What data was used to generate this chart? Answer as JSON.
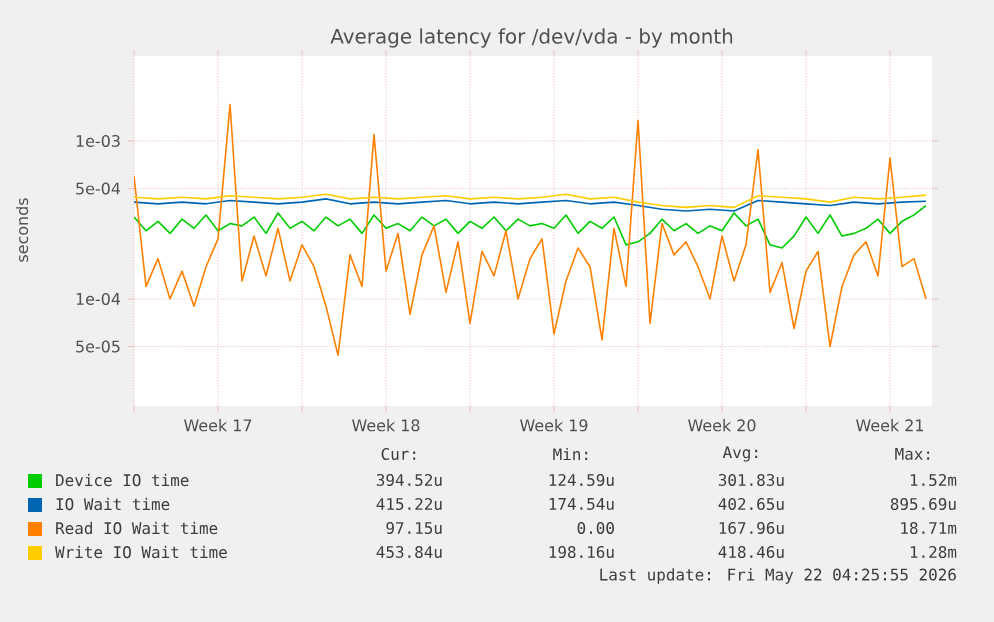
{
  "chart_data": {
    "type": "line",
    "title": "Average latency for /dev/vda - by month",
    "ylabel": "seconds",
    "log": "y",
    "grid": true,
    "legend": "bottom",
    "xlim": [
      "2026-04-20",
      "2026-05-23T06:00"
    ],
    "ylim": [
      2.1e-05,
      0.00345
    ],
    "xticks": [
      {
        "value": "2026-04-20",
        "label": null
      },
      {
        "value": "2026-04-23T12:00",
        "label": "Week 17"
      },
      {
        "value": "2026-04-27",
        "label": null
      },
      {
        "value": "2026-04-30T12:00",
        "label": "Week 18"
      },
      {
        "value": "2026-05-04",
        "label": null
      },
      {
        "value": "2026-05-07T12:00",
        "label": "Week 19"
      },
      {
        "value": "2026-05-11",
        "label": null
      },
      {
        "value": "2026-05-14T12:00",
        "label": "Week 20"
      },
      {
        "value": "2026-05-18",
        "label": null
      },
      {
        "value": "2026-05-21T12:00",
        "label": "Week 21"
      }
    ],
    "yticks": [
      {
        "value": 5e-05,
        "label": "5e-05"
      },
      {
        "value": 0.0001,
        "label": "1e-04"
      },
      {
        "value": 0.0005,
        "label": "5e-04"
      },
      {
        "value": 0.001,
        "label": "1e-03"
      }
    ],
    "series": [
      {
        "name": "Device IO time",
        "color": "#00cc00",
        "x": [
          "2026-04-20",
          "2026-04-20T12:00",
          "2026-04-21",
          "2026-04-21T12:00",
          "2026-04-22",
          "2026-04-22T12:00",
          "2026-04-23",
          "2026-04-23T12:00",
          "2026-04-24",
          "2026-04-24T12:00",
          "2026-04-25",
          "2026-04-25T12:00",
          "2026-04-26",
          "2026-04-26T12:00",
          "2026-04-27",
          "2026-04-27T12:00",
          "2026-04-28",
          "2026-04-28T12:00",
          "2026-04-29",
          "2026-04-29T12:00",
          "2026-04-30",
          "2026-04-30T12:00",
          "2026-05-01",
          "2026-05-01T12:00",
          "2026-05-02",
          "2026-05-02T12:00",
          "2026-05-03",
          "2026-05-03T12:00",
          "2026-05-04",
          "2026-05-04T12:00",
          "2026-05-05",
          "2026-05-05T12:00",
          "2026-05-06",
          "2026-05-06T12:00",
          "2026-05-07",
          "2026-05-07T12:00",
          "2026-05-08",
          "2026-05-08T12:00",
          "2026-05-09",
          "2026-05-09T12:00",
          "2026-05-10",
          "2026-05-10T12:00",
          "2026-05-11",
          "2026-05-11T12:00",
          "2026-05-12",
          "2026-05-12T12:00",
          "2026-05-13",
          "2026-05-13T12:00",
          "2026-05-14",
          "2026-05-14T12:00",
          "2026-05-15",
          "2026-05-15T12:00",
          "2026-05-16",
          "2026-05-16T12:00",
          "2026-05-17",
          "2026-05-17T12:00",
          "2026-05-18",
          "2026-05-18T12:00",
          "2026-05-19",
          "2026-05-19T12:00",
          "2026-05-20",
          "2026-05-20T12:00",
          "2026-05-21",
          "2026-05-21T12:00",
          "2026-05-22",
          "2026-05-22T12:00",
          "2026-05-23"
        ],
        "values": [
          0.00033,
          0.00027,
          0.00031,
          0.00026,
          0.00032,
          0.00028,
          0.00034,
          0.00027,
          0.0003,
          0.00029,
          0.00033,
          0.00026,
          0.00035,
          0.00028,
          0.00031,
          0.00027,
          0.00033,
          0.00029,
          0.00032,
          0.00026,
          0.00034,
          0.00028,
          0.0003,
          0.00027,
          0.00033,
          0.00029,
          0.00032,
          0.00026,
          0.00031,
          0.00028,
          0.00033,
          0.00027,
          0.00032,
          0.00029,
          0.0003,
          0.00028,
          0.00034,
          0.00026,
          0.00031,
          0.00028,
          0.00033,
          0.00022,
          0.00023,
          0.00026,
          0.00032,
          0.00027,
          0.0003,
          0.00026,
          0.00029,
          0.00027,
          0.00035,
          0.00029,
          0.00032,
          0.00022,
          0.00021,
          0.00025,
          0.00033,
          0.00026,
          0.00034,
          0.00025,
          0.00026,
          0.00028,
          0.00032,
          0.00026,
          0.00031,
          0.00034,
          0.00039
        ]
      },
      {
        "name": "IO Wait time",
        "color": "#0066b3",
        "x": [
          "2026-04-20",
          "2026-04-21",
          "2026-04-22",
          "2026-04-23",
          "2026-04-24",
          "2026-04-25",
          "2026-04-26",
          "2026-04-27",
          "2026-04-28",
          "2026-04-29",
          "2026-04-30",
          "2026-05-01",
          "2026-05-02",
          "2026-05-03",
          "2026-05-04",
          "2026-05-05",
          "2026-05-06",
          "2026-05-07",
          "2026-05-08",
          "2026-05-09",
          "2026-05-10",
          "2026-05-11",
          "2026-05-12",
          "2026-05-13",
          "2026-05-14",
          "2026-05-15",
          "2026-05-16",
          "2026-05-17",
          "2026-05-18",
          "2026-05-19",
          "2026-05-20",
          "2026-05-21",
          "2026-05-22",
          "2026-05-23"
        ],
        "values": [
          0.00041,
          0.0004,
          0.00041,
          0.0004,
          0.00042,
          0.00041,
          0.0004,
          0.00041,
          0.00043,
          0.0004,
          0.00041,
          0.0004,
          0.00041,
          0.00042,
          0.0004,
          0.00041,
          0.0004,
          0.00041,
          0.00042,
          0.0004,
          0.00041,
          0.00039,
          0.00037,
          0.00036,
          0.00037,
          0.00036,
          0.00042,
          0.00041,
          0.0004,
          0.00039,
          0.00041,
          0.0004,
          0.00041,
          0.000415
        ]
      },
      {
        "name": "Read IO Wait time",
        "color": "#ff8000",
        "x": [
          "2026-04-20",
          "2026-04-20T12:00",
          "2026-04-21",
          "2026-04-21T12:00",
          "2026-04-22",
          "2026-04-22T12:00",
          "2026-04-23",
          "2026-04-23T12:00",
          "2026-04-24",
          "2026-04-24T12:00",
          "2026-04-25",
          "2026-04-25T12:00",
          "2026-04-26",
          "2026-04-26T12:00",
          "2026-04-27",
          "2026-04-27T12:00",
          "2026-04-28",
          "2026-04-28T12:00",
          "2026-04-29",
          "2026-04-29T12:00",
          "2026-04-30",
          "2026-04-30T12:00",
          "2026-05-01",
          "2026-05-01T12:00",
          "2026-05-02",
          "2026-05-02T12:00",
          "2026-05-03",
          "2026-05-03T12:00",
          "2026-05-04",
          "2026-05-04T12:00",
          "2026-05-05",
          "2026-05-05T12:00",
          "2026-05-06",
          "2026-05-06T12:00",
          "2026-05-07",
          "2026-05-07T12:00",
          "2026-05-08",
          "2026-05-08T12:00",
          "2026-05-09",
          "2026-05-09T12:00",
          "2026-05-10",
          "2026-05-10T12:00",
          "2026-05-11",
          "2026-05-11T12:00",
          "2026-05-12",
          "2026-05-12T12:00",
          "2026-05-13",
          "2026-05-13T12:00",
          "2026-05-14",
          "2026-05-14T12:00",
          "2026-05-15",
          "2026-05-15T12:00",
          "2026-05-16",
          "2026-05-16T12:00",
          "2026-05-17",
          "2026-05-17T12:00",
          "2026-05-18",
          "2026-05-18T12:00",
          "2026-05-19",
          "2026-05-19T12:00",
          "2026-05-20",
          "2026-05-20T12:00",
          "2026-05-21",
          "2026-05-21T12:00",
          "2026-05-22",
          "2026-05-22T12:00",
          "2026-05-23"
        ],
        "values": [
          0.0006,
          0.00012,
          0.00018,
          0.0001,
          0.00015,
          9e-05,
          0.00016,
          0.00024,
          0.0017,
          0.00013,
          0.00025,
          0.00014,
          0.00028,
          0.00013,
          0.00022,
          0.00016,
          9e-05,
          4.4e-05,
          0.00019,
          0.00012,
          0.0011,
          0.00015,
          0.00026,
          8e-05,
          0.00019,
          0.00029,
          0.00011,
          0.00023,
          7e-05,
          0.0002,
          0.00014,
          0.00027,
          0.0001,
          0.00018,
          0.00024,
          6e-05,
          0.00013,
          0.00021,
          0.00016,
          5.5e-05,
          0.00028,
          0.00012,
          0.00135,
          7e-05,
          0.0003,
          0.00019,
          0.00023,
          0.00016,
          0.0001,
          0.00025,
          0.00013,
          0.00022,
          0.00088,
          0.00011,
          0.00017,
          6.5e-05,
          0.00015,
          0.0002,
          5e-05,
          0.00012,
          0.00019,
          0.00023,
          0.00014,
          0.00078,
          0.00016,
          0.00018,
          0.0001
        ]
      },
      {
        "name": "Write IO Wait time",
        "color": "#ffcc00",
        "x": [
          "2026-04-20",
          "2026-04-21",
          "2026-04-22",
          "2026-04-23",
          "2026-04-24",
          "2026-04-25",
          "2026-04-26",
          "2026-04-27",
          "2026-04-28",
          "2026-04-29",
          "2026-04-30",
          "2026-05-01",
          "2026-05-02",
          "2026-05-03",
          "2026-05-04",
          "2026-05-05",
          "2026-05-06",
          "2026-05-07",
          "2026-05-08",
          "2026-05-09",
          "2026-05-10",
          "2026-05-11",
          "2026-05-12",
          "2026-05-13",
          "2026-05-14",
          "2026-05-15",
          "2026-05-16",
          "2026-05-17",
          "2026-05-18",
          "2026-05-19",
          "2026-05-20",
          "2026-05-21",
          "2026-05-22",
          "2026-05-23"
        ],
        "values": [
          0.00044,
          0.00043,
          0.00044,
          0.00043,
          0.00045,
          0.00044,
          0.00043,
          0.00044,
          0.00046,
          0.00043,
          0.00044,
          0.00043,
          0.00044,
          0.00045,
          0.00043,
          0.00044,
          0.00043,
          0.00044,
          0.00046,
          0.00043,
          0.00044,
          0.00041,
          0.00039,
          0.00038,
          0.00039,
          0.00038,
          0.00045,
          0.00044,
          0.00043,
          0.00041,
          0.00044,
          0.00043,
          0.00044,
          0.000454
        ]
      }
    ],
    "annotations": [
      "Cur:",
      "Min:",
      "Avg:",
      "Max:",
      "394.52u",
      "124.59u",
      "301.83u",
      "1.52m",
      "415.22u",
      "174.54u",
      "402.65u",
      "895.69u",
      "97.15u",
      "0.00",
      "167.96u",
      "18.71m",
      "453.84u",
      "198.16u",
      "418.46u",
      "1.28m",
      "Last update: Fri May 22 04:25:55 2026"
    ]
  }
}
